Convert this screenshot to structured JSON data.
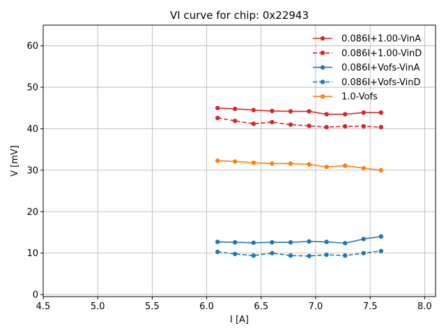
{
  "chart_data": {
    "type": "line",
    "title": "VI curve for chip: 0x22943",
    "xlabel": "I [A]",
    "ylabel": "V [mV]",
    "xlim": [
      4.5,
      8.1
    ],
    "ylim": [
      -0.5,
      65
    ],
    "xticks": [
      4.5,
      5.0,
      5.5,
      6.0,
      6.5,
      7.0,
      7.5,
      8.0
    ],
    "xtick_labels": [
      "4.5",
      "5.0",
      "5.5",
      "6.0",
      "6.5",
      "7.0",
      "7.5",
      "8.0"
    ],
    "yticks": [
      0,
      10,
      20,
      30,
      40,
      50,
      60
    ],
    "ytick_labels": [
      "0",
      "10",
      "20",
      "30",
      "40",
      "50",
      "60"
    ],
    "grid": true,
    "legend_position": "top-right",
    "x": [
      6.1,
      6.26,
      6.43,
      6.6,
      6.77,
      6.94,
      7.1,
      7.27,
      7.44,
      7.6
    ],
    "series": [
      {
        "name": "0.086I+1.00-VinA",
        "color": "#d62728",
        "style": "solid",
        "values": [
          45.0,
          44.8,
          44.5,
          44.3,
          44.2,
          44.2,
          43.5,
          43.5,
          43.9,
          43.9
        ]
      },
      {
        "name": "0.086I+1.00-VinD",
        "color": "#d62728",
        "style": "dashed",
        "values": [
          42.6,
          41.9,
          41.2,
          41.6,
          41.0,
          40.7,
          40.4,
          40.6,
          40.6,
          40.4
        ]
      },
      {
        "name": "0.086I+Vofs-VinA",
        "color": "#1f77b4",
        "style": "solid",
        "values": [
          12.7,
          12.6,
          12.5,
          12.6,
          12.6,
          12.8,
          12.7,
          12.4,
          13.4,
          14.0
        ]
      },
      {
        "name": "0.086I+Vofs-VinD",
        "color": "#1f77b4",
        "style": "dashed",
        "values": [
          10.3,
          9.8,
          9.4,
          10.0,
          9.4,
          9.3,
          9.6,
          9.4,
          10.0,
          10.5
        ]
      },
      {
        "name": "1.0-Vofs",
        "color": "#ff7f0e",
        "style": "solid",
        "values": [
          32.3,
          32.1,
          31.8,
          31.6,
          31.6,
          31.4,
          30.8,
          31.1,
          30.5,
          30.0
        ]
      }
    ]
  }
}
